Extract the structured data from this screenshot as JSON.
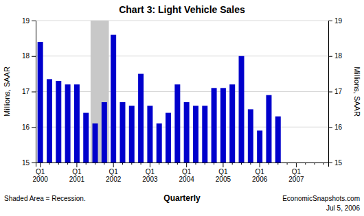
{
  "chart_data": {
    "type": "bar",
    "title": "Chart 3: Light Vehicle Sales",
    "xlabel": "Quarterly",
    "ylabel": "Millions, SAAR",
    "y2label": "Millions, SAAR",
    "footnote": "Shaded Area = Recession.",
    "watermark": [
      "EconomicSnapshots.com",
      "Jul 5, 2006"
    ],
    "categories": [
      "Q1\n2000",
      null,
      null,
      null,
      "Q1\n2001",
      null,
      null,
      null,
      "Q1\n2002",
      null,
      null,
      null,
      "Q1\n2003",
      null,
      null,
      null,
      "Q1\n2004",
      null,
      null,
      null,
      "Q1\n2005",
      null,
      null,
      null,
      "Q1\n2006",
      null,
      null,
      null,
      "Q1\n2007",
      null,
      null,
      null
    ],
    "values": [
      18.4,
      17.35,
      17.3,
      17.2,
      17.2,
      16.4,
      16.1,
      16.7,
      18.6,
      16.7,
      16.6,
      17.5,
      16.6,
      16.1,
      16.4,
      17.2,
      16.7,
      16.6,
      16.6,
      17.1,
      17.1,
      17.2,
      18.0,
      16.5,
      15.9,
      16.9,
      16.3,
      null,
      null,
      null,
      null,
      null
    ],
    "color": "#0000cc",
    "shaded": {
      "from": 6,
      "to": 7,
      "color": "#c8c8c8"
    },
    "ylim": [
      15,
      19
    ],
    "yticks": [
      15,
      16,
      17,
      18,
      19
    ],
    "y2lim": [
      15,
      19
    ],
    "y2ticks": [
      15,
      16,
      17,
      18,
      19
    ],
    "grid": true
  }
}
